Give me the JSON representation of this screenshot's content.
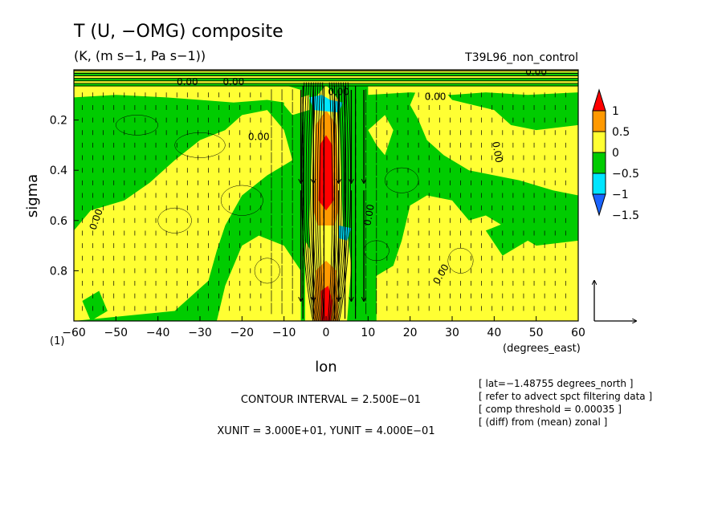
{
  "chart_data": {
    "type": "heatmap",
    "title": "T (U, −OMG) composite",
    "subtitle": "(K, (m s−1, Pa s−1))",
    "run_label": "T39L96_non_control",
    "xlabel": "lon",
    "xunit_label": "(degrees_east)",
    "ylabel": "sigma",
    "corner_label": "(1)",
    "xlim": [
      -60,
      60
    ],
    "ylim": [
      0.0,
      1.0
    ],
    "y_inverted": true,
    "x_ticks": [
      -60,
      -50,
      -40,
      -30,
      -20,
      -10,
      0,
      10,
      20,
      30,
      40,
      50,
      60
    ],
    "x_tick_labels": [
      "−60",
      "−50",
      "−40",
      "−30",
      "−20",
      "−10",
      "0",
      "10",
      "20",
      "30",
      "40",
      "50",
      "60"
    ],
    "y_ticks": [
      0.2,
      0.4,
      0.6,
      0.8
    ],
    "y_tick_labels": [
      "0.2",
      "0.4",
      "0.6",
      "0.8"
    ],
    "colorbar": {
      "levels": [
        -1.5,
        -1,
        -0.5,
        0,
        0.5,
        1
      ],
      "labels": [
        "1",
        "0.5",
        "0",
        "−0.5",
        "−1",
        "−1.5"
      ],
      "colors": [
        "#1a64ff",
        "#00e5ff",
        "#00cc00",
        "#ffff33",
        "#ff9900",
        "#ff0000"
      ]
    },
    "contour_label": "0.00",
    "annotations": [
      "CONTOUR INTERVAL = 2.500E−01",
      "XUNIT = 3.000E+01, YUNIT = 4.000E−01"
    ],
    "info_lines": [
      "[ lat=−1.48755 degrees_north ]",
      "[ refer to advect spct filtering data ]",
      "[ comp threshold = 0.00035 ]",
      "[ (diff) from (mean) zonal ]"
    ],
    "grid": false,
    "legend_position": "right"
  }
}
